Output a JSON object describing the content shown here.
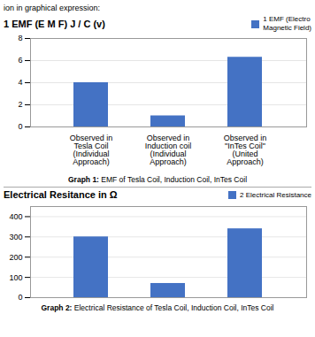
{
  "title": "ion in graphical expression:",
  "chart_data": [
    {
      "type": "bar",
      "title": "1 EMF (E M F) J / C (v)",
      "categories": [
        "Observed in\nTesla Coil\n(Individual\nApproach)",
        "Observed in\nInduction coil\n(Individual\nApproach)",
        "Observed in\n\"InTes Coil\"\n(United\nApproach)"
      ],
      "series": [
        {
          "name": "1 EMF (Electro\nMagnetic Field)",
          "color": "#4472C4",
          "values": [
            4,
            1,
            6.3
          ]
        }
      ],
      "ylim": [
        0,
        8
      ],
      "yticks": [
        0,
        2,
        4,
        6,
        8
      ],
      "grid": true,
      "legend": "upper right",
      "caption": "Graph 1: EMF of Tesla Coil, Induction Coil, InTes Coil"
    },
    {
      "type": "bar",
      "title": "Electrical Resitance in Ω",
      "categories": [
        null,
        null,
        null
      ],
      "series": [
        {
          "name": "2 Electrical Resistance",
          "color": "#4472C4",
          "values": [
            300,
            70,
            340
          ]
        }
      ],
      "ylim": [
        0,
        450
      ],
      "yticks": [
        0,
        100,
        200,
        300,
        400
      ],
      "grid": true,
      "legend": "center right",
      "tick_labels": "y",
      "caption": "Graph 2: Electrical Resistance of Tesla Coil, Induction Coil, InTes Coil"
    }
  ]
}
